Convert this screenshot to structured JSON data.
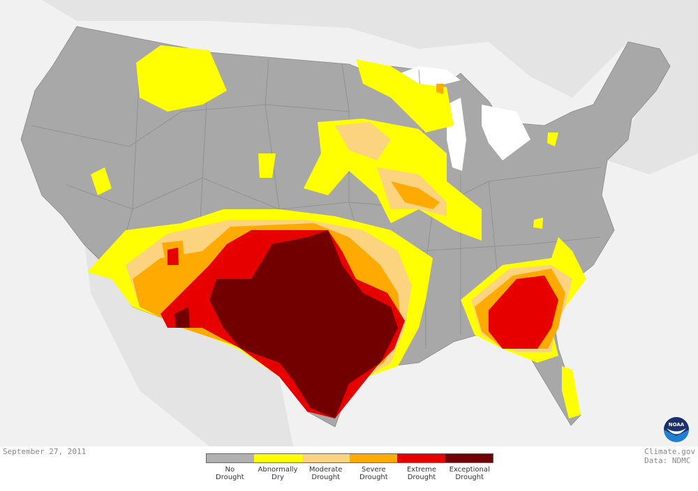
{
  "date": "September 27, 2011",
  "credit": {
    "line1": "Climate.gov",
    "line2": "Data: NDMC"
  },
  "logo": {
    "text": "NOAA"
  },
  "legend": [
    {
      "label": "No\nDrought",
      "color": "#b0b0b0"
    },
    {
      "label": "Abnormally\nDry",
      "color": "#ffff00"
    },
    {
      "label": "Moderate\nDrought",
      "color": "#fcd37f"
    },
    {
      "label": "Severe\nDrought",
      "color": "#ffaa00"
    },
    {
      "label": "Extreme\nDrought",
      "color": "#e60000"
    },
    {
      "label": "Exceptional\nDrought",
      "color": "#730000"
    }
  ],
  "colors": {
    "land": "#a8a8a8",
    "background": "#f1f1f1",
    "water": "#ffffff"
  }
}
